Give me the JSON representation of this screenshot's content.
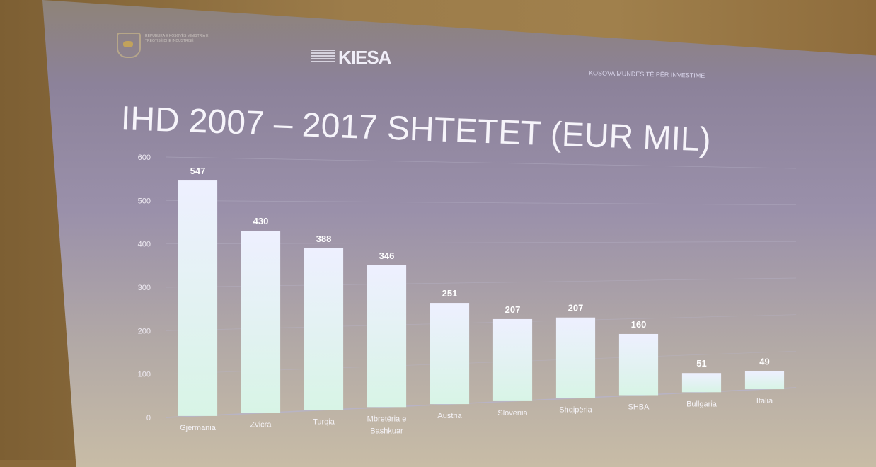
{
  "slide": {
    "header_left": "REPUBLIKA E KOSOVËS MINISTRIA E TREGTISË DHE INDUSTRISË",
    "logo": "KIESA",
    "tagline": "KOSOVA MUNDËSITË PËR INVESTIME"
  },
  "chart_data": {
    "type": "bar",
    "title": "IHD 2007 – 2017 SHTETET (EUR MIL)",
    "categories": [
      "Gjermania",
      "Zvicra",
      "Turqia",
      "Mbretëria e Bashkuar",
      "Austria",
      "Slovenia",
      "Shqipëria",
      "SHBA",
      "Bullgaria",
      "Italia"
    ],
    "values": [
      547,
      430,
      388,
      346,
      251,
      207,
      207,
      160,
      51,
      49
    ],
    "ylim": [
      0,
      600
    ],
    "yticks": [
      0,
      100,
      200,
      300,
      400,
      500,
      600
    ],
    "grid": true,
    "data_labels": true,
    "colors": {
      "bar_top": "#eef0ff",
      "bar_bottom": "#d8f4e6",
      "grid": "#b8b4c8"
    }
  }
}
